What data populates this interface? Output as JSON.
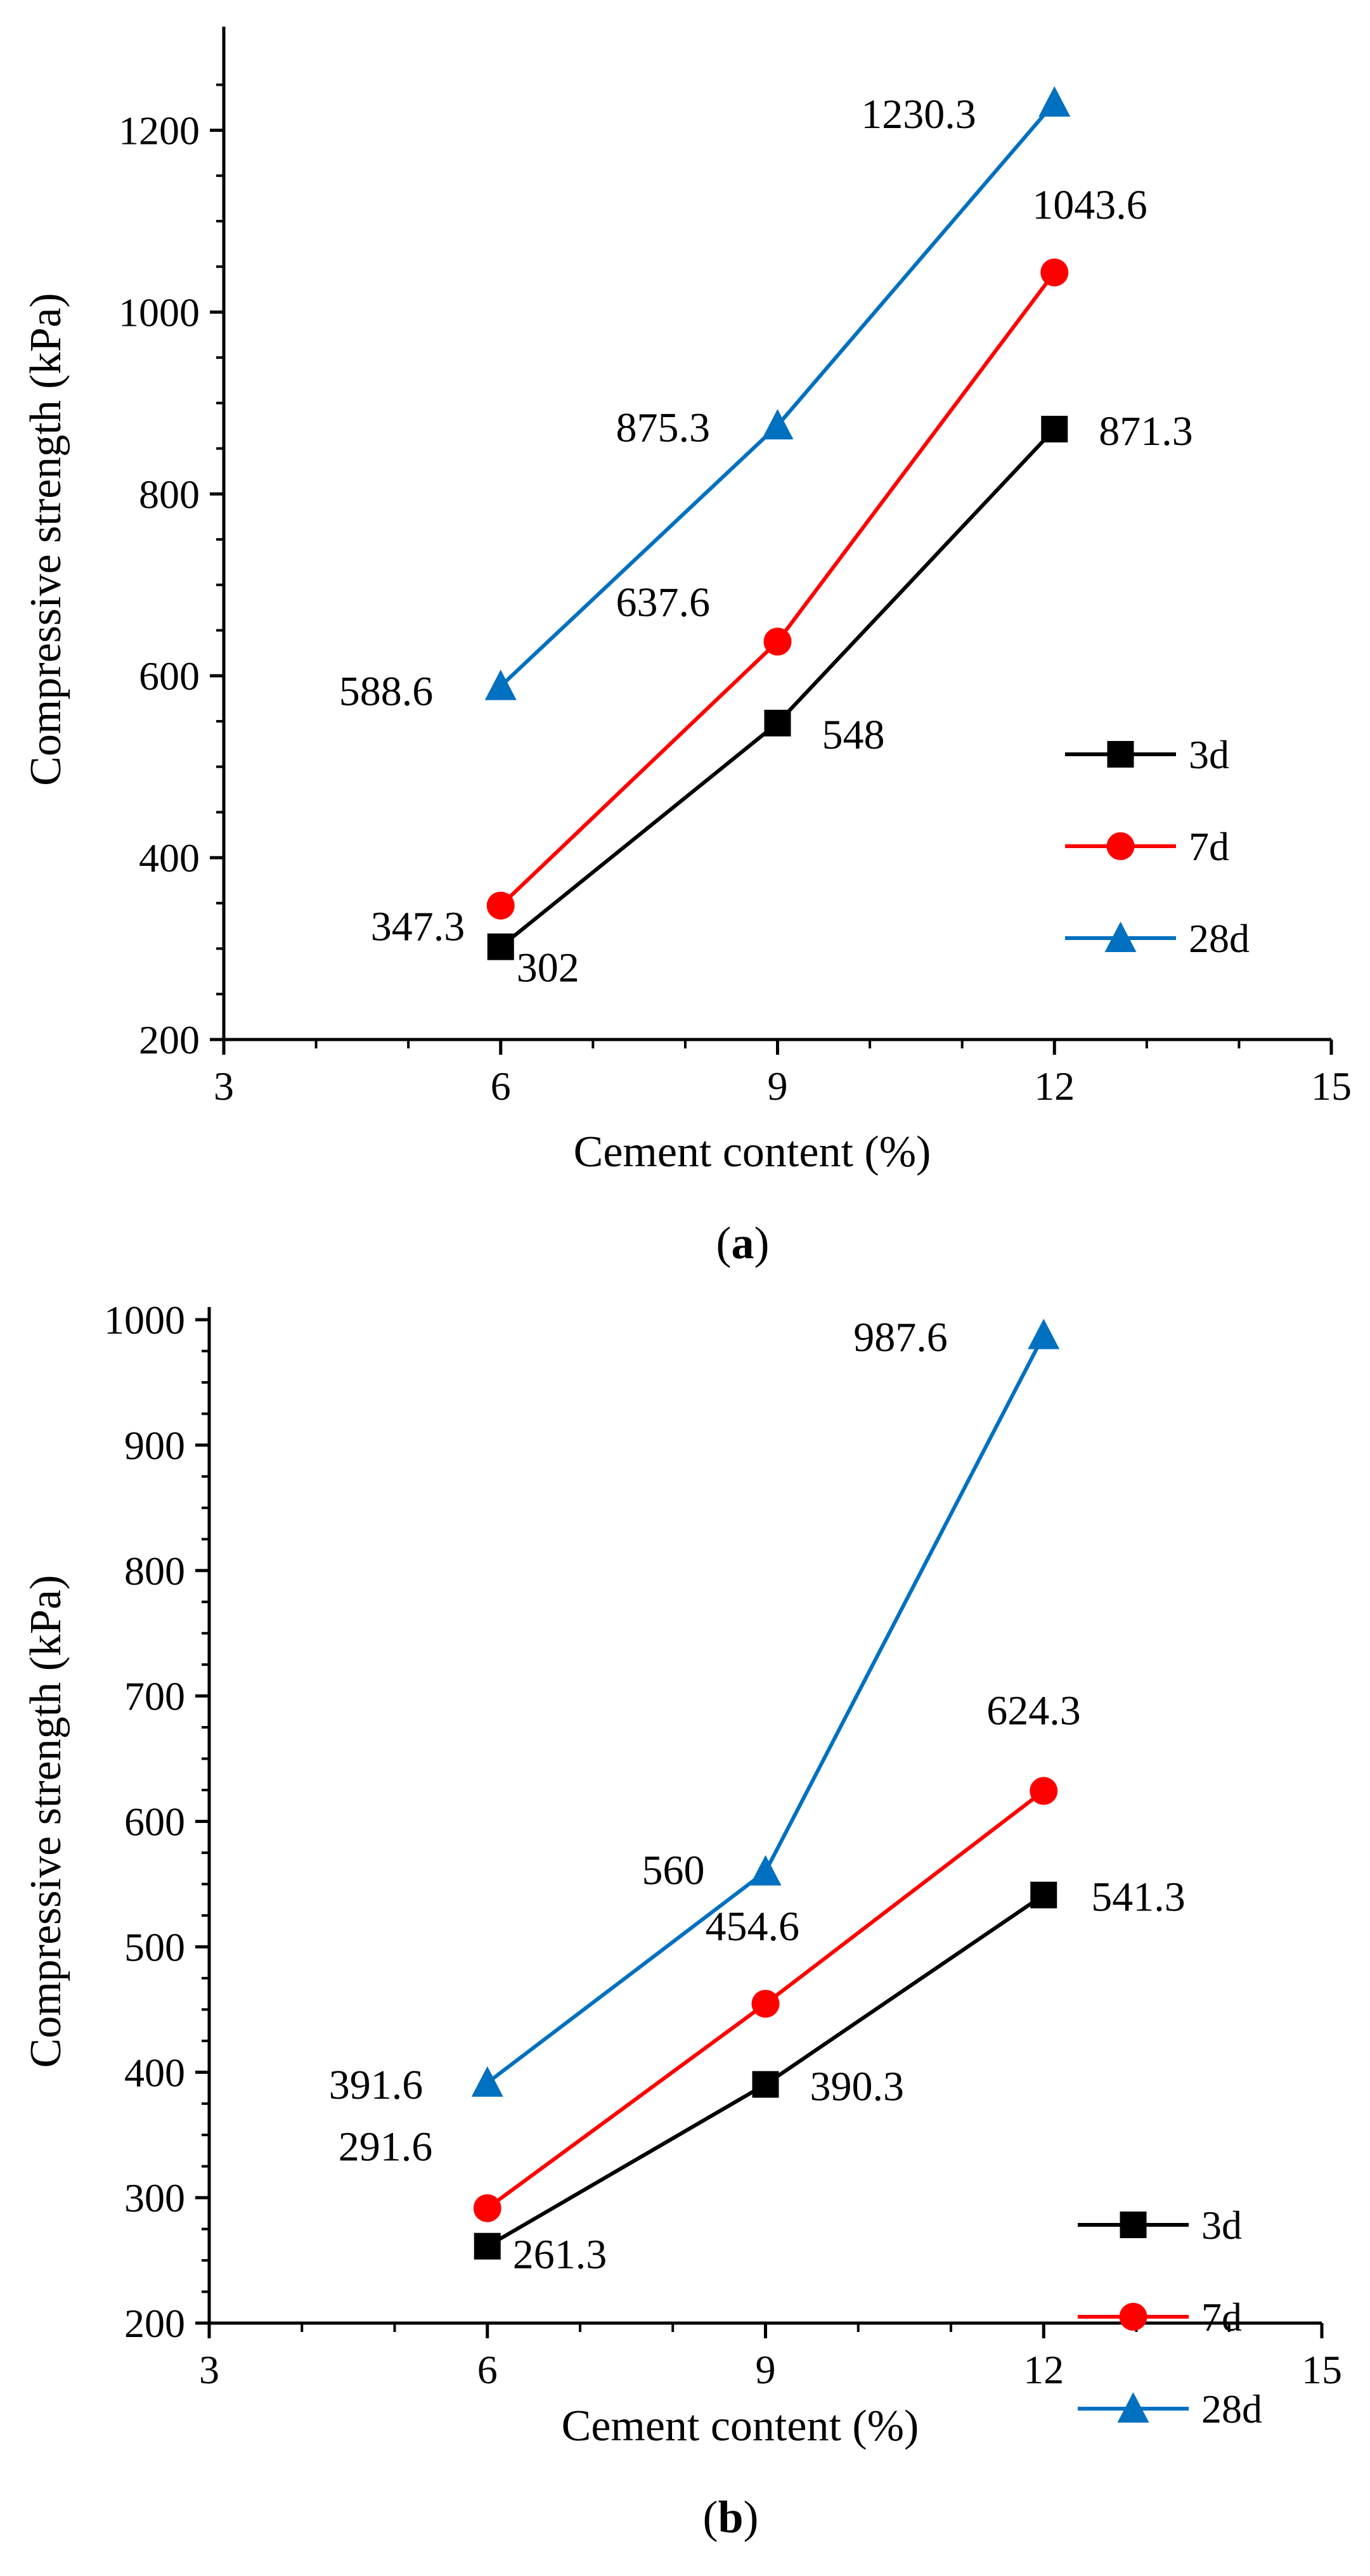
{
  "chart_data": [
    {
      "type": "line",
      "panel_label": "a",
      "title": "",
      "xlabel": "Cement content (%)",
      "ylabel": "Compressive strength (kPa)",
      "xlim": [
        3,
        15
      ],
      "ylim": [
        200,
        1300
      ],
      "x_ticks": [
        3,
        6,
        9,
        12,
        15
      ],
      "y_ticks": [
        200,
        400,
        600,
        800,
        1000,
        1200
      ],
      "grid": false,
      "legend_position": "right",
      "x": [
        6,
        9,
        12
      ],
      "series": [
        {
          "name": "3d",
          "color": "#000000",
          "marker": "square",
          "values": [
            302,
            548,
            871.3
          ],
          "labels": [
            "302",
            "548",
            "871.3"
          ]
        },
        {
          "name": "7d",
          "color": "#ff0000",
          "marker": "circle",
          "values": [
            347.3,
            637.6,
            1043.6
          ],
          "labels": [
            "347.3",
            "637.6",
            "1043.6"
          ]
        },
        {
          "name": "28d",
          "color": "#0070c0",
          "marker": "triangle",
          "values": [
            588.6,
            875.3,
            1230.3
          ],
          "labels": [
            "588.6",
            "875.3",
            "1230.3"
          ]
        }
      ]
    },
    {
      "type": "line",
      "panel_label": "b",
      "title": "",
      "xlabel": "Cement content (%)",
      "ylabel": "Compressive strength (kPa)",
      "xlim": [
        3,
        15
      ],
      "ylim": [
        200,
        1000
      ],
      "x_ticks": [
        3,
        6,
        9,
        12,
        15
      ],
      "y_ticks": [
        200,
        300,
        400,
        500,
        600,
        700,
        800,
        900,
        1000
      ],
      "grid": false,
      "legend_position": "right",
      "x": [
        6,
        9,
        12
      ],
      "series": [
        {
          "name": "3d",
          "color": "#000000",
          "marker": "square",
          "values": [
            261.3,
            390.3,
            541.3
          ],
          "labels": [
            "261.3",
            "390.3",
            "541.3"
          ]
        },
        {
          "name": "7d",
          "color": "#ff0000",
          "marker": "circle",
          "values": [
            291.6,
            454.6,
            624.3
          ],
          "labels": [
            "291.6",
            "454.6",
            "624.3"
          ]
        },
        {
          "name": "28d",
          "color": "#0070c0",
          "marker": "triangle",
          "values": [
            391.6,
            560,
            987.6
          ],
          "labels": [
            "391.6",
            "560",
            "987.6"
          ]
        }
      ]
    }
  ]
}
